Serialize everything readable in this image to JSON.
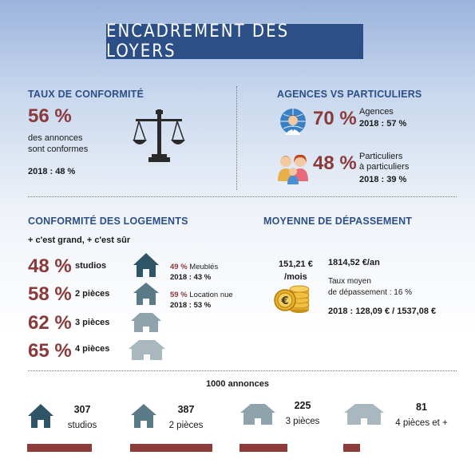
{
  "title": "ENCADREMENT DES LOYERS",
  "conformite": {
    "heading": "TAUX DE CONFORMITÉ",
    "percent": "56 %",
    "text_line1": "des annonces",
    "text_line2": "sont conformes",
    "year_2018": "2018 : 48 %"
  },
  "agences": {
    "heading": "AGENCES VS PARTICULIERS",
    "agences_percent": "70 %",
    "agences_label": "Agences",
    "agences_2018": "2018 : 57 %",
    "part_percent": "48 %",
    "part_label1": "Particuliers",
    "part_label2": "à particuliers",
    "part_2018": "2018 : 39 %"
  },
  "logements": {
    "heading": "CONFORMITÉ DES LOGEMENTS",
    "subtitle": "+ c'est grand, + c'est sûr",
    "rows": [
      {
        "percent": "48 %",
        "label": "studios"
      },
      {
        "percent": "58 %",
        "label": "2 pièces"
      },
      {
        "percent": "62 %",
        "label": "3 pièces"
      },
      {
        "percent": "65 %",
        "label": "4 pièces"
      }
    ],
    "meubles_percent": "49 %",
    "meubles_label": "Meublés",
    "meubles_2018": "2018 : 43 %",
    "nue_percent": "59 %",
    "nue_label": "Location nue",
    "nue_2018": "2018 : 53 %"
  },
  "depassement": {
    "heading": "MOYENNE DE DÉPASSEMENT",
    "monthly_value": "151,21 €",
    "monthly_unit": "/mois",
    "annual": "1814,52 €/an",
    "taux_line1": "Taux moyen",
    "taux_line2": "de dépassement : 16 %",
    "year_2018": "2018 : 128,09 € / 1537,08 €"
  },
  "annonces": {
    "heading": "1000 annonces",
    "items": [
      {
        "count": "307",
        "label": "studios",
        "share": 0.307
      },
      {
        "count": "387",
        "label": "2 pièces",
        "share": 0.387
      },
      {
        "count": "225",
        "label": "3 pièces",
        "share": 0.225
      },
      {
        "count": "81",
        "label": "4 pièces et +",
        "share": 0.081
      }
    ]
  },
  "colors": {
    "accent_blue": "#2c4f88",
    "accent_red": "#8e3b3b",
    "house_dark": "#2e5565",
    "house_mid": "#5b7a88",
    "house_light": "#8fa3ad",
    "house_lighter": "#a9b8bf"
  },
  "icons": [
    "scale-icon",
    "globe-person-icon",
    "family-icon",
    "coins-icon",
    "house-icon"
  ]
}
